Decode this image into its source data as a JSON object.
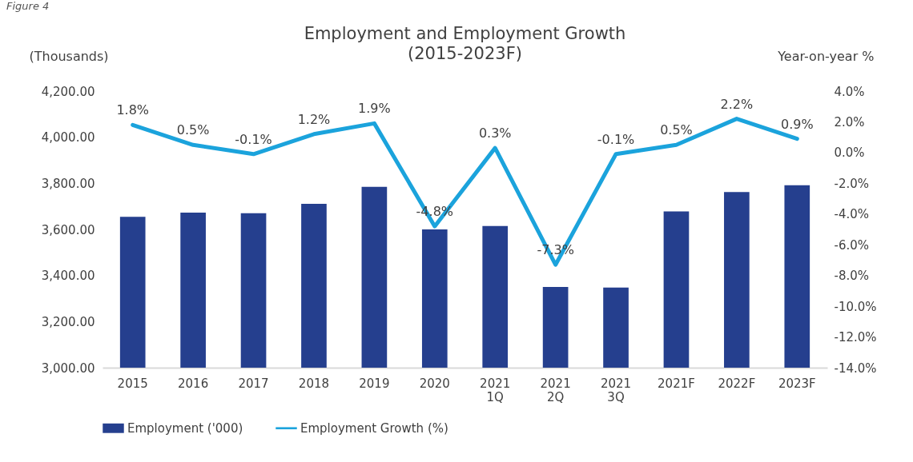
{
  "chart_data": {
    "type": "bar",
    "title": "Employment and Employment Growth",
    "subtitle": "(2015-2023F)",
    "ylabel": "(Thousands)",
    "y2label": "Year-on-year %",
    "annotations": [
      "Figure 4"
    ],
    "categories": [
      "2015",
      "2016",
      "2017",
      "2018",
      "2019",
      "2020",
      "2021 1Q",
      "2021 2Q",
      "2021 3Q",
      "2021F",
      "2022F",
      "2023F"
    ],
    "series": [
      {
        "name": "Employment ('000)",
        "color": "#253f8e",
        "values": [
          3655,
          3673,
          3670,
          3711,
          3785,
          3600,
          3615,
          3350,
          3348,
          3678,
          3762,
          3792
        ]
      },
      {
        "name": "Employment Growth (%)",
        "type": "line",
        "axis": "y2",
        "color": "#1ba3dc",
        "values": [
          1.8,
          0.5,
          -0.1,
          1.2,
          1.9,
          -4.8,
          0.3,
          -7.3,
          -0.1,
          0.5,
          2.2,
          0.9
        ],
        "value_labels": [
          "1.8%",
          "0.5%",
          "-0.1%",
          "1.2%",
          "1.9%",
          "-4.8%",
          "0.3%",
          "-7.3%",
          "-0.1%",
          "0.5%",
          "2.2%",
          "0.9%"
        ]
      }
    ],
    "ylim": [
      3000,
      4200
    ],
    "yticks": [
      {
        "value": 3000,
        "label": "3,000.00"
      },
      {
        "value": 3200,
        "label": "3,200.00"
      },
      {
        "value": 3400,
        "label": "3,400.00"
      },
      {
        "value": 3600,
        "label": "3,600.00"
      },
      {
        "value": 3800,
        "label": "3,800.00"
      },
      {
        "value": 4000,
        "label": "4,000.00"
      },
      {
        "value": 4200,
        "label": "4,200.00"
      }
    ],
    "y2lim": [
      -14,
      4
    ],
    "y2ticks": [
      {
        "value": -14,
        "label": "-14.0%"
      },
      {
        "value": -12,
        "label": "-12.0%"
      },
      {
        "value": -10,
        "label": "-10.0%"
      },
      {
        "value": -8,
        "label": "-8.0%"
      },
      {
        "value": -6,
        "label": "-6.0%"
      },
      {
        "value": -4,
        "label": "-4.0%"
      },
      {
        "value": -2,
        "label": "-2.0%"
      },
      {
        "value": 0,
        "label": "0.0%"
      },
      {
        "value": 2,
        "label": "2.0%"
      },
      {
        "value": 4,
        "label": "4.0%"
      }
    ],
    "legend": "bottom",
    "grid": false,
    "marker": "none",
    "line_style": "solid"
  }
}
